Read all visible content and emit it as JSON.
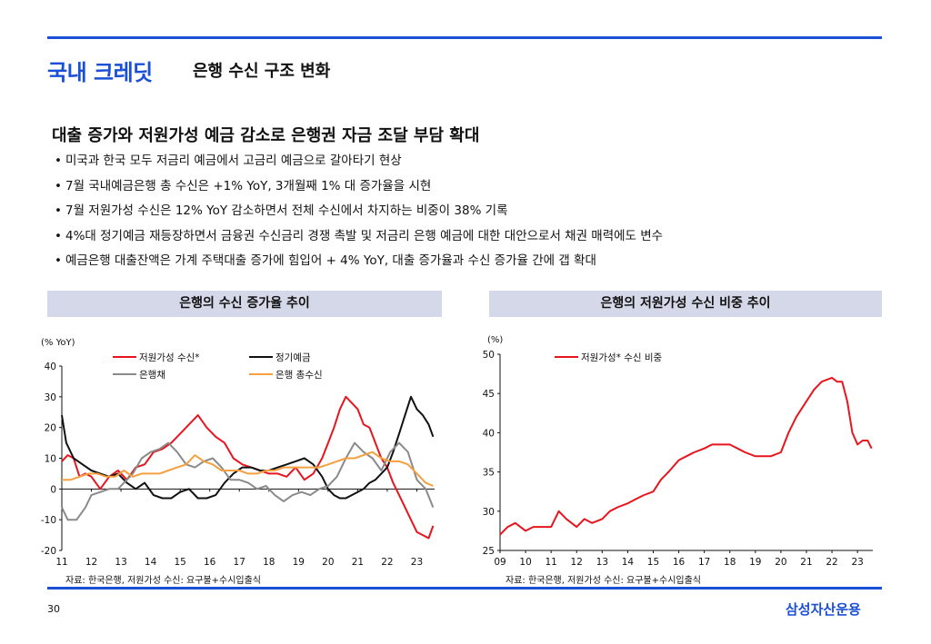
{
  "header": {
    "title": "국내 크레딧",
    "subtitle": "은행 수신 구조 변화"
  },
  "headline": "대출 증가와 저원가성 예금 감소로 은행권 자금 조달 부담 확대",
  "bullets": [
    "미국과 한국 모두 저금리 예금에서 고금리 예금으로 갈아타기 현상",
    "7월 국내예금은행 총 수신은 +1% YoY, 3개월째 1% 대 증가율을 시현",
    "7월 저원가성 수신은 12% YoY 감소하면서 전체 수신에서 차지하는 비중이 38% 기록",
    "4%대 정기예금 재등장하면서 금융권 수신금리 경쟁 촉발 및 저금리 은행 예금에 대한 대안으로서 채권 매력에도 변수",
    "예금은행 대출잔액은 가계 주택대출 증가에 힘입어 + 4% YoY,  대출 증가율과 수신 증가율 간에 갭  확대"
  ],
  "panels": {
    "left_title": "은행의 수신 증가율 추이",
    "right_title": "은행의 저원가성 수신 비중 추이",
    "left_source": "자료: 한국은행, 저원가성 수신: 요구불+수시입출식",
    "right_source": "자료: 한국은행, 저원가성 수신: 요구불+수시입출식"
  },
  "colors": {
    "accent": "#1a4fd6",
    "red": "#e8141e",
    "black": "#111111",
    "gray": "#8a8a8a",
    "orange": "#f5a040"
  },
  "footer": {
    "page": "30",
    "brand": "삼성자산운용"
  },
  "chart_data": [
    {
      "type": "line",
      "title": "은행의 수신 증가율 추이",
      "ylabel": "(% YoY)",
      "ylim": [
        -20,
        40
      ],
      "yticks": [
        40,
        30,
        20,
        10,
        0,
        -10,
        -20
      ],
      "xlim": [
        2011,
        2023.6
      ],
      "xticks": [
        "11",
        "12",
        "13",
        "14",
        "15",
        "16",
        "17",
        "18",
        "19",
        "20",
        "21",
        "22",
        "23"
      ],
      "legend": [
        "저원가성 수신*",
        "정기예금",
        "은행채",
        "은행 총수신"
      ],
      "series": [
        {
          "name": "저원가성 수신*",
          "color": "#e8141e",
          "x": [
            2011.0,
            2011.2,
            2011.4,
            2011.6,
            2011.8,
            2012.0,
            2012.3,
            2012.6,
            2012.9,
            2013.2,
            2013.5,
            2013.8,
            2014.1,
            2014.4,
            2014.7,
            2015.0,
            2015.3,
            2015.6,
            2015.9,
            2016.2,
            2016.5,
            2016.8,
            2017.1,
            2017.4,
            2017.7,
            2018.0,
            2018.3,
            2018.6,
            2018.9,
            2019.2,
            2019.5,
            2019.8,
            2020.0,
            2020.2,
            2020.4,
            2020.6,
            2020.8,
            2021.0,
            2021.2,
            2021.4,
            2021.6,
            2021.8,
            2022.0,
            2022.2,
            2022.4,
            2022.6,
            2022.8,
            2023.0,
            2023.2,
            2023.4,
            2023.55
          ],
          "values": [
            9,
            11,
            10,
            4,
            5,
            4,
            0,
            4,
            6,
            3,
            7,
            8,
            12,
            13,
            15,
            18,
            21,
            24,
            20,
            17,
            15,
            10,
            8,
            7,
            6,
            5,
            5,
            4,
            7,
            3,
            5,
            10,
            15,
            20,
            26,
            30,
            28,
            26,
            21,
            20,
            15,
            10,
            7,
            2,
            -2,
            -6,
            -10,
            -14,
            -15,
            -16,
            -12
          ]
        },
        {
          "name": "정기예금",
          "color": "#111111",
          "x": [
            2011.0,
            2011.15,
            2011.4,
            2011.7,
            2012.0,
            2012.3,
            2012.6,
            2012.9,
            2013.2,
            2013.5,
            2013.8,
            2014.1,
            2014.4,
            2014.7,
            2015.0,
            2015.3,
            2015.6,
            2015.9,
            2016.2,
            2016.5,
            2016.8,
            2017.1,
            2017.4,
            2017.7,
            2018.0,
            2018.3,
            2018.6,
            2018.9,
            2019.2,
            2019.5,
            2019.8,
            2020.0,
            2020.2,
            2020.4,
            2020.6,
            2020.8,
            2021.0,
            2021.2,
            2021.4,
            2021.6,
            2021.8,
            2022.0,
            2022.2,
            2022.4,
            2022.6,
            2022.8,
            2023.0,
            2023.2,
            2023.4,
            2023.55
          ],
          "values": [
            24,
            15,
            10,
            8,
            6,
            5,
            4,
            5,
            2,
            0,
            2,
            -2,
            -3,
            -3,
            -1,
            0,
            -3,
            -3,
            -2,
            2,
            5,
            7,
            7,
            6,
            6,
            7,
            8,
            9,
            10,
            8,
            4,
            0,
            -2,
            -3,
            -3,
            -2,
            -1,
            0,
            2,
            3,
            5,
            7,
            12,
            18,
            24,
            30,
            26,
            24,
            21,
            17
          ]
        },
        {
          "name": "은행채",
          "color": "#8a8a8a",
          "x": [
            2011.0,
            2011.2,
            2011.5,
            2011.8,
            2012.0,
            2012.3,
            2012.6,
            2012.9,
            2013.1,
            2013.4,
            2013.7,
            2014.0,
            2014.3,
            2014.6,
            2014.9,
            2015.2,
            2015.5,
            2015.8,
            2016.1,
            2016.4,
            2016.7,
            2017.0,
            2017.3,
            2017.6,
            2017.9,
            2018.2,
            2018.5,
            2018.8,
            2019.1,
            2019.4,
            2019.7,
            2020.0,
            2020.3,
            2020.6,
            2020.9,
            2021.2,
            2021.5,
            2021.8,
            2022.1,
            2022.4,
            2022.7,
            2023.0,
            2023.3,
            2023.55
          ],
          "values": [
            -6,
            -10,
            -10,
            -6,
            -2,
            -1,
            0,
            0,
            2,
            5,
            10,
            12,
            13,
            15,
            12,
            8,
            7,
            9,
            10,
            7,
            3,
            3,
            2,
            0,
            1,
            -2,
            -4,
            -2,
            -1,
            -2,
            0,
            1,
            4,
            10,
            15,
            12,
            10,
            6,
            12,
            15,
            12,
            3,
            0,
            -6
          ]
        },
        {
          "name": "은행 총수신",
          "color": "#f5a040",
          "x": [
            2011.0,
            2011.3,
            2011.6,
            2011.9,
            2012.2,
            2012.5,
            2012.8,
            2013.1,
            2013.4,
            2013.7,
            2014.0,
            2014.3,
            2014.6,
            2014.9,
            2015.2,
            2015.5,
            2015.8,
            2016.1,
            2016.4,
            2016.7,
            2017.0,
            2017.3,
            2017.6,
            2017.9,
            2018.2,
            2018.5,
            2018.8,
            2019.1,
            2019.4,
            2019.7,
            2020.0,
            2020.3,
            2020.6,
            2020.9,
            2021.2,
            2021.5,
            2021.8,
            2022.1,
            2022.4,
            2022.7,
            2023.0,
            2023.3,
            2023.55
          ],
          "values": [
            3,
            3,
            4,
            5,
            5,
            4,
            4,
            6,
            4,
            5,
            5,
            5,
            6,
            7,
            8,
            11,
            9,
            8,
            6,
            6,
            6,
            5,
            5,
            6,
            6,
            7,
            7,
            7,
            7,
            7,
            8,
            9,
            10,
            10,
            11,
            12,
            10,
            9,
            9,
            8,
            5,
            2,
            1
          ]
        }
      ]
    },
    {
      "type": "line",
      "title": "은행의 저원가성 수신 비중 추이",
      "ylabel": "(%)",
      "ylim": [
        25,
        50
      ],
      "yticks": [
        50,
        45,
        40,
        35,
        30,
        25
      ],
      "xlim": [
        2009,
        2023.6
      ],
      "xticks": [
        "09",
        "10",
        "11",
        "12",
        "13",
        "14",
        "15",
        "16",
        "17",
        "18",
        "19",
        "20",
        "21",
        "22",
        "23"
      ],
      "legend": [
        "저원가성* 수신 비중"
      ],
      "series": [
        {
          "name": "저원가성* 수신 비중",
          "color": "#e8141e",
          "x": [
            2009.0,
            2009.3,
            2009.6,
            2010.0,
            2010.3,
            2010.6,
            2011.0,
            2011.3,
            2011.6,
            2012.0,
            2012.3,
            2012.6,
            2013.0,
            2013.3,
            2013.6,
            2014.0,
            2014.3,
            2014.6,
            2015.0,
            2015.3,
            2015.6,
            2016.0,
            2016.3,
            2016.6,
            2017.0,
            2017.3,
            2017.6,
            2018.0,
            2018.3,
            2018.6,
            2019.0,
            2019.3,
            2019.6,
            2020.0,
            2020.3,
            2020.6,
            2021.0,
            2021.3,
            2021.6,
            2022.0,
            2022.2,
            2022.4,
            2022.6,
            2022.8,
            2023.0,
            2023.2,
            2023.4,
            2023.55
          ],
          "values": [
            27,
            28,
            28.5,
            27.5,
            28,
            28,
            28,
            30,
            29,
            28,
            29,
            28.5,
            29,
            30,
            30.5,
            31,
            31.5,
            32,
            32.5,
            34,
            35,
            36.5,
            37,
            37.5,
            38,
            38.5,
            38.5,
            38.5,
            38,
            37.5,
            37,
            37,
            37,
            37.5,
            40,
            42,
            44,
            45.5,
            46.5,
            47,
            46.5,
            46.5,
            44,
            40,
            38.5,
            39,
            39,
            38
          ]
        }
      ]
    }
  ]
}
